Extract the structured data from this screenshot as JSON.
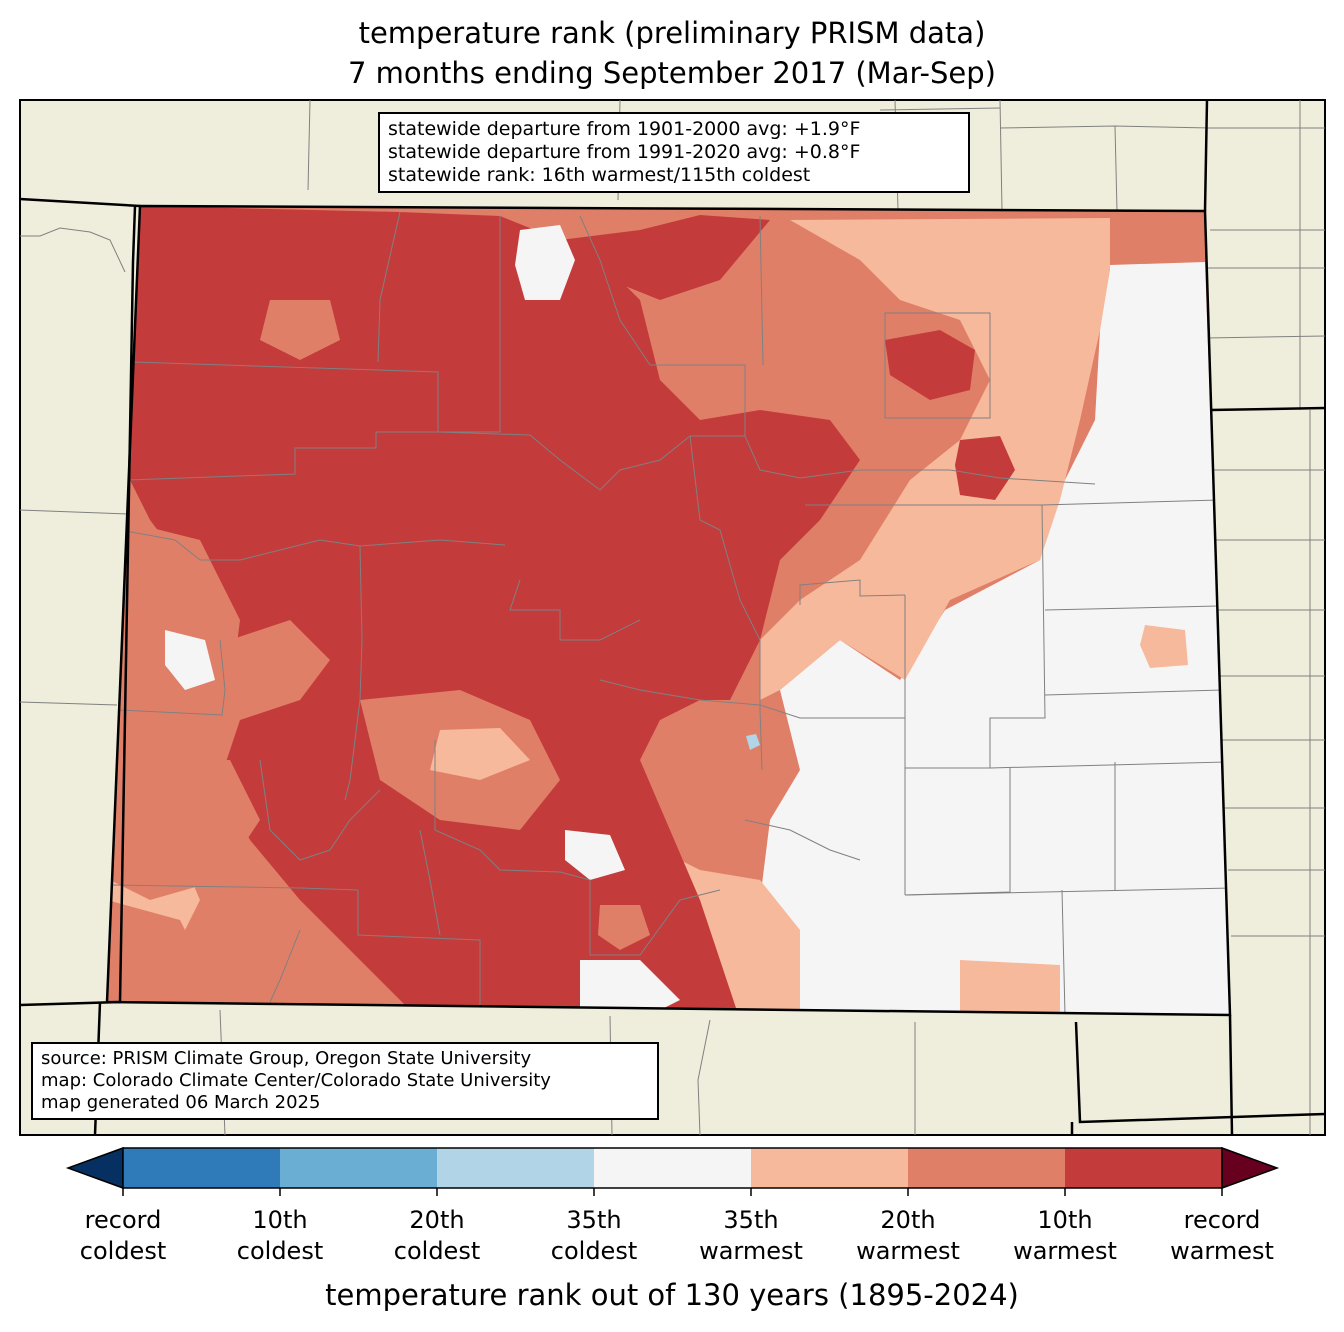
{
  "title": {
    "line1": "temperature rank (preliminary PRISM data)",
    "line2": "7 months ending September 2017 (Mar-Sep)"
  },
  "stats": {
    "line1": "statewide departure from 1901-2000 avg: +1.9°F",
    "line2": "statewide departure from 1991-2020 avg: +0.8°F",
    "line3": "statewide rank: 16th warmest/115th coldest"
  },
  "source": {
    "line1": "source: PRISM Climate Group, Oregon State University",
    "line2": "map: Colorado Climate Center/Colorado State University",
    "line3": "map generated 06 March 2025"
  },
  "colorbar": {
    "title": "temperature rank out of 130 years (1895-2024)",
    "extend_low_color": "#053061",
    "extend_high_color": "#67001f",
    "bins": [
      {
        "color": "#2f7ab9"
      },
      {
        "color": "#6aaed3"
      },
      {
        "color": "#b1d4e6"
      },
      {
        "color": "#f5f5f5"
      },
      {
        "color": "#f7b99c"
      },
      {
        "color": "#e07f67"
      },
      {
        "color": "#c43b3c"
      }
    ],
    "ticks": [
      {
        "line1": "record",
        "line2": "coldest"
      },
      {
        "line1": "10th",
        "line2": "coldest"
      },
      {
        "line1": "20th",
        "line2": "coldest"
      },
      {
        "line1": "35th",
        "line2": "coldest"
      },
      {
        "line1": "35th",
        "line2": "warmest"
      },
      {
        "line1": "20th",
        "line2": "warmest"
      },
      {
        "line1": "10th",
        "line2": "warmest"
      },
      {
        "line1": "record",
        "line2": "warmest"
      }
    ]
  },
  "map": {
    "background_color": "#efeedc",
    "state_outline_color": "#000000",
    "county_line_color": "#808080"
  }
}
